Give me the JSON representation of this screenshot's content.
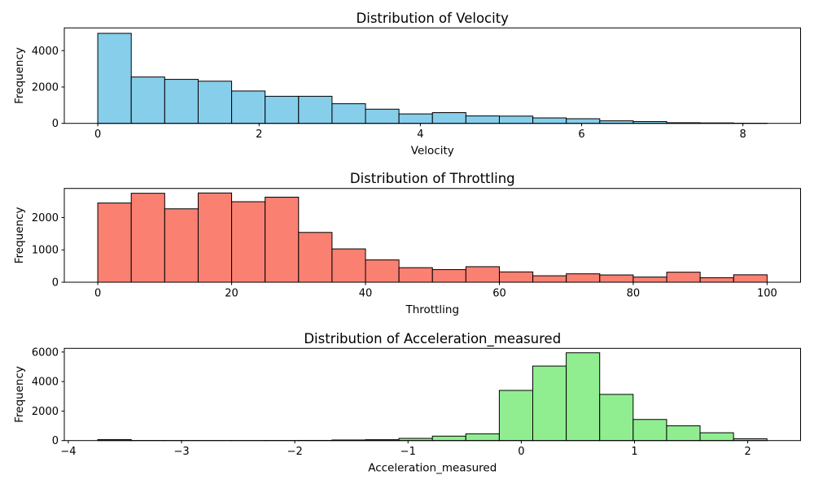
{
  "figure": {
    "background": "#ffffff",
    "text_color": "#000000",
    "bar_edge_color": "#000000"
  },
  "chart_data": [
    {
      "type": "bar",
      "subtype": "histogram",
      "title": "Distribution of Velocity",
      "xlabel": "Velocity",
      "ylabel": "Frequency",
      "bar_color": "#87CEEB",
      "bin_start": 0,
      "bin_width": 0.415,
      "values": [
        4950,
        2550,
        2420,
        2320,
        1780,
        1490,
        1490,
        1080,
        780,
        520,
        590,
        410,
        400,
        300,
        255,
        140,
        100,
        35,
        25,
        10
      ],
      "xlim": [
        -0.415,
        8.715
      ],
      "ylim": [
        0,
        5250
      ],
      "xticks": {
        "values": [
          0,
          2,
          4,
          6,
          8
        ],
        "labels": [
          "0",
          "2",
          "4",
          "6",
          "8"
        ]
      },
      "yticks": {
        "values": [
          0,
          2000,
          4000
        ],
        "labels": [
          "0",
          "2000",
          "4000"
        ]
      },
      "grid": false,
      "legend": null
    },
    {
      "type": "bar",
      "subtype": "histogram",
      "title": "Distribution of Throttling",
      "xlabel": "Throttling",
      "ylabel": "Frequency",
      "bar_color": "#FA8072",
      "bin_start": 0,
      "bin_width": 5,
      "values": [
        2450,
        2750,
        2270,
        2760,
        2490,
        2630,
        1540,
        1030,
        690,
        450,
        390,
        480,
        320,
        200,
        260,
        225,
        160,
        310,
        140,
        230
      ],
      "xlim": [
        -5,
        105
      ],
      "ylim": [
        0,
        2900
      ],
      "xticks": {
        "values": [
          0,
          20,
          40,
          60,
          80,
          100
        ],
        "labels": [
          "0",
          "20",
          "40",
          "60",
          "80",
          "100"
        ]
      },
      "yticks": {
        "values": [
          0,
          1000,
          2000
        ],
        "labels": [
          "0",
          "1000",
          "2000"
        ]
      },
      "grid": false,
      "legend": null
    },
    {
      "type": "bar",
      "subtype": "histogram",
      "title": "Distribution of Acceleration_measured",
      "xlabel": "Acceleration_measured",
      "ylabel": "Frequency",
      "bar_color": "#90EE90",
      "bin_start": -3.74,
      "bin_width": 0.2955,
      "values": [
        70,
        5,
        3,
        2,
        2,
        5,
        12,
        40,
        60,
        150,
        300,
        460,
        3400,
        5050,
        5950,
        3130,
        1430,
        1000,
        530,
        120
      ],
      "xlim": [
        -4.0355,
        2.4665
      ],
      "ylim": [
        0,
        6250
      ],
      "xticks": {
        "values": [
          -4,
          -3,
          -2,
          -1,
          0,
          1,
          2
        ],
        "labels": [
          "−4",
          "−3",
          "−2",
          "−1",
          "0",
          "1",
          "2"
        ]
      },
      "yticks": {
        "values": [
          0,
          2000,
          4000,
          6000
        ],
        "labels": [
          "0",
          "2000",
          "4000",
          "6000"
        ]
      },
      "grid": false,
      "legend": null
    }
  ]
}
